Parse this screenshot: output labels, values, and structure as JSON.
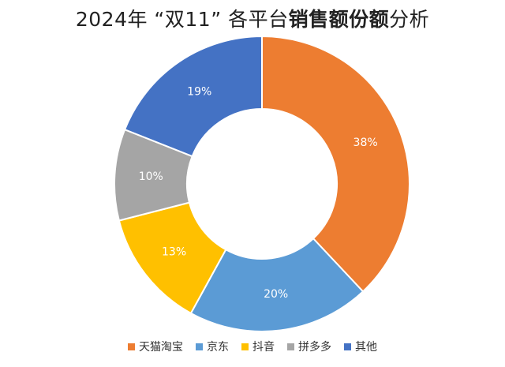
{
  "title": {
    "prefix": "2024年 “双11” 各平台",
    "bold": "销售额份额",
    "suffix": "分析"
  },
  "chart_data": {
    "type": "pie",
    "donut": true,
    "title": "2024年 “双11” 各平台销售额份额分析",
    "legend_position": "bottom",
    "categories": [
      "天猫淘宝",
      "京东",
      "抖音",
      "拼多多",
      "其他"
    ],
    "values": [
      38,
      20,
      13,
      10,
      19
    ],
    "labels": [
      "38%",
      "20%",
      "13%",
      "10%",
      "19%"
    ],
    "colors": [
      "#ED7D31",
      "#5B9BD5",
      "#FFC000",
      "#A5A5A5",
      "#4472C4"
    ]
  }
}
